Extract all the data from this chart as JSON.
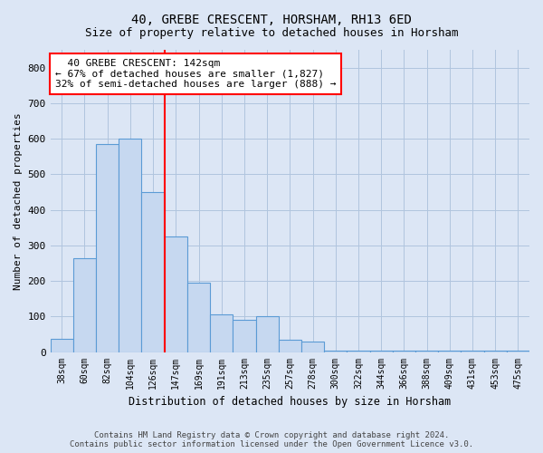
{
  "title1": "40, GREBE CRESCENT, HORSHAM, RH13 6ED",
  "title2": "Size of property relative to detached houses in Horsham",
  "xlabel": "Distribution of detached houses by size in Horsham",
  "ylabel": "Number of detached properties",
  "categories": [
    "38sqm",
    "60sqm",
    "82sqm",
    "104sqm",
    "126sqm",
    "147sqm",
    "169sqm",
    "191sqm",
    "213sqm",
    "235sqm",
    "257sqm",
    "278sqm",
    "300sqm",
    "322sqm",
    "344sqm",
    "366sqm",
    "388sqm",
    "409sqm",
    "431sqm",
    "453sqm",
    "475sqm"
  ],
  "values": [
    38,
    265,
    585,
    600,
    450,
    325,
    195,
    105,
    90,
    100,
    35,
    30,
    5,
    5,
    5,
    5,
    5,
    5,
    5,
    5,
    5
  ],
  "bar_color": "#c6d8f0",
  "bar_edge_color": "#5b9bd5",
  "redline_x": 4.5,
  "annotation_text": "  40 GREBE CRESCENT: 142sqm\n← 67% of detached houses are smaller (1,827)\n32% of semi-detached houses are larger (888) →",
  "ylim": [
    0,
    850
  ],
  "yticks": [
    0,
    100,
    200,
    300,
    400,
    500,
    600,
    700,
    800
  ],
  "footer": "Contains HM Land Registry data © Crown copyright and database right 2024.\nContains public sector information licensed under the Open Government Licence v3.0.",
  "bg_color": "#dce6f5",
  "plot_bg_color": "#dce6f5",
  "grid_color": "#b0c4de",
  "title_fontsize": 10,
  "subtitle_fontsize": 9
}
